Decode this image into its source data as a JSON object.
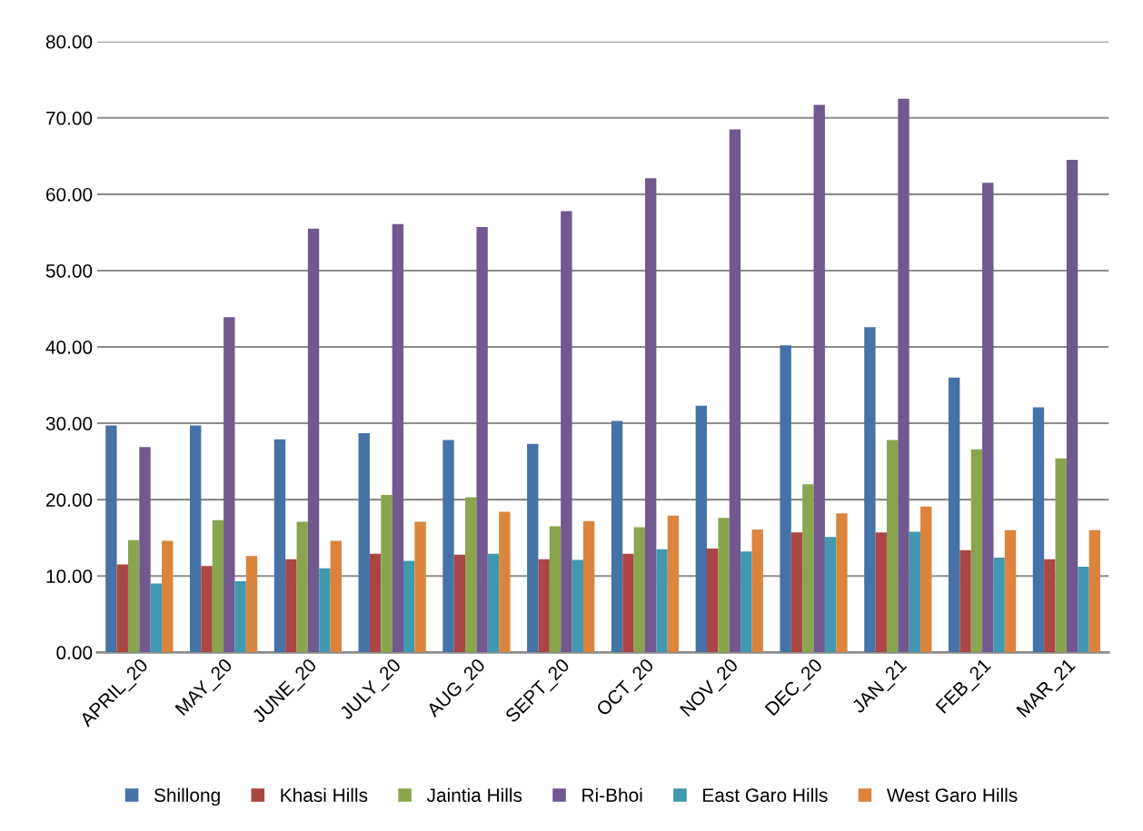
{
  "chart_data": {
    "type": "bar",
    "categories": [
      "APRIL_20",
      "MAY_20",
      "JUNE_20",
      "JULY_20",
      "AUG_20",
      "SEPT_20",
      "OCT_20",
      "NOV_20",
      "DEC_20",
      "JAN_21",
      "FEB_21",
      "MAR_21"
    ],
    "series": [
      {
        "name": "Shillong",
        "color": "#4572a7",
        "values": [
          29.7,
          29.7,
          27.9,
          28.7,
          27.8,
          27.3,
          30.3,
          32.3,
          40.2,
          42.6,
          36.0,
          32.1
        ]
      },
      {
        "name": "Khasi Hills",
        "color": "#aa4643",
        "values": [
          11.5,
          11.3,
          12.2,
          12.9,
          12.8,
          12.2,
          12.9,
          13.6,
          15.7,
          15.7,
          13.4,
          12.2
        ]
      },
      {
        "name": "Jaintia Hills",
        "color": "#89a54e",
        "values": [
          14.7,
          17.3,
          17.1,
          20.6,
          20.3,
          16.5,
          16.4,
          17.6,
          22.0,
          27.8,
          26.6,
          25.4
        ]
      },
      {
        "name": "Ri-Bhoi",
        "color": "#71588f",
        "values": [
          26.9,
          43.9,
          55.5,
          56.1,
          55.7,
          57.8,
          62.1,
          68.5,
          71.7,
          72.5,
          61.5,
          64.5
        ]
      },
      {
        "name": "East Garo Hills",
        "color": "#4198af",
        "values": [
          9.0,
          9.3,
          11.0,
          12.0,
          12.9,
          12.1,
          13.5,
          13.2,
          15.1,
          15.8,
          12.4,
          11.2
        ]
      },
      {
        "name": "West Garo Hills",
        "color": "#db843d",
        "values": [
          14.6,
          12.6,
          14.6,
          17.1,
          18.4,
          17.2,
          17.9,
          16.1,
          18.2,
          19.1,
          16.0,
          16.0
        ]
      }
    ],
    "ylim": [
      0,
      80
    ],
    "yticks": [
      {
        "value": 0,
        "label": "0.00"
      },
      {
        "value": 10,
        "label": "10.00"
      },
      {
        "value": 20,
        "label": "20.00"
      },
      {
        "value": 30,
        "label": "30.00"
      },
      {
        "value": 40,
        "label": "40.00"
      },
      {
        "value": 50,
        "label": "50.00"
      },
      {
        "value": 60,
        "label": "60.00"
      },
      {
        "value": 70,
        "label": "70.00"
      },
      {
        "value": 80,
        "label": "80.00"
      }
    ],
    "grid": "y",
    "legend": "bottom"
  }
}
